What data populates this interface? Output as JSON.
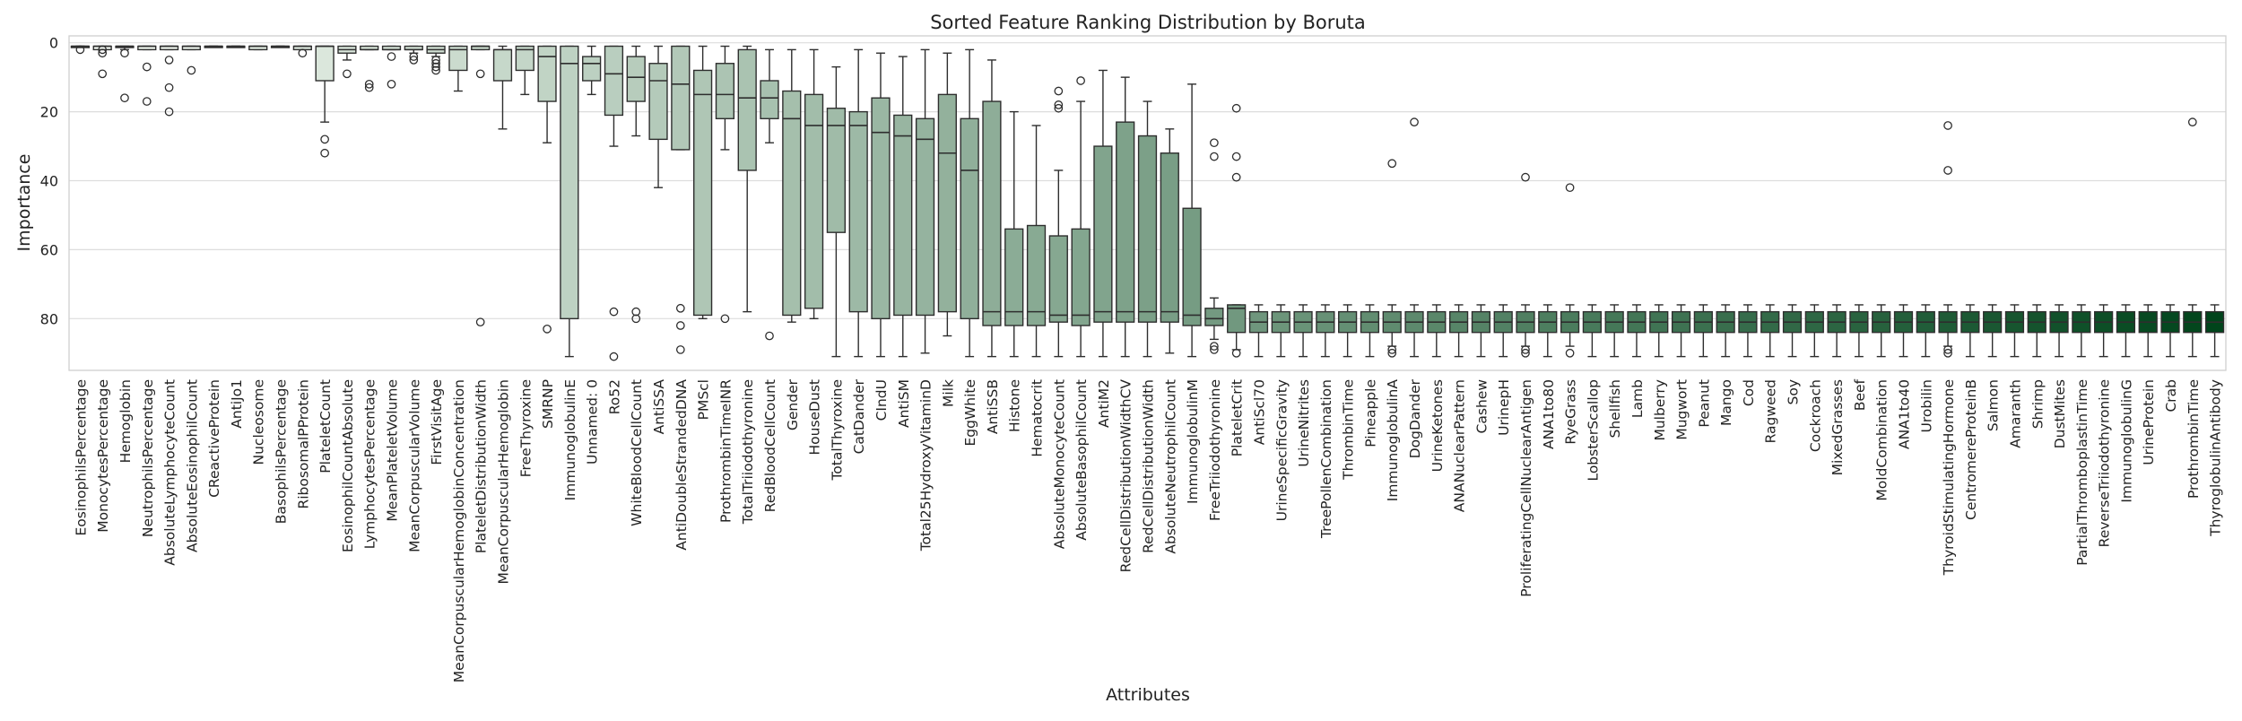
{
  "chart_data": {
    "type": "box",
    "title": "Sorted Feature Ranking Distribution by Boruta",
    "xlabel": "Attributes",
    "ylabel": "Importance",
    "ylim": [
      95,
      -2
    ],
    "y_inverted": true,
    "yticks": [
      0,
      20,
      40,
      60,
      80
    ],
    "grid": "horizontal",
    "color_scale": {
      "start": "#f7fcf5",
      "end": "#00441b"
    },
    "series": [
      {
        "name": "EosinophilsPercentage",
        "min": 1,
        "q1": 1,
        "median": 1,
        "q3": 1,
        "max": 1,
        "outliers": [
          2
        ]
      },
      {
        "name": "MonocytesPercentage",
        "min": 1,
        "q1": 1,
        "median": 1,
        "q3": 2,
        "max": 2,
        "outliers": [
          2,
          3,
          9
        ]
      },
      {
        "name": "Hemoglobin",
        "min": 1,
        "q1": 1,
        "median": 1,
        "q3": 1,
        "max": 2,
        "outliers": [
          3,
          16
        ]
      },
      {
        "name": "NeutrophilsPercentage",
        "min": 1,
        "q1": 1,
        "median": 1,
        "q3": 2,
        "max": 2,
        "outliers": [
          7,
          17
        ]
      },
      {
        "name": "AbsoluteLymphocyteCount",
        "min": 1,
        "q1": 1,
        "median": 1,
        "q3": 2,
        "max": 2,
        "outliers": [
          5,
          13,
          20
        ]
      },
      {
        "name": "AbsoluteEosinophilCount",
        "min": 1,
        "q1": 1,
        "median": 1,
        "q3": 2,
        "max": 2,
        "outliers": [
          8
        ]
      },
      {
        "name": "CReactiveProtein",
        "min": 1,
        "q1": 1,
        "median": 1,
        "q3": 1,
        "max": 1,
        "outliers": []
      },
      {
        "name": "AntiJo1",
        "min": 1,
        "q1": 1,
        "median": 1,
        "q3": 1,
        "max": 1,
        "outliers": []
      },
      {
        "name": "Nucleosome",
        "min": 1,
        "q1": 1,
        "median": 1,
        "q3": 2,
        "max": 2,
        "outliers": []
      },
      {
        "name": "BasophilsPercentage",
        "min": 1,
        "q1": 1,
        "median": 1,
        "q3": 1,
        "max": 1,
        "outliers": []
      },
      {
        "name": "RibosomalPProtein",
        "min": 1,
        "q1": 1,
        "median": 1,
        "q3": 2,
        "max": 2,
        "outliers": [
          3
        ]
      },
      {
        "name": "PlateletCount",
        "min": 1,
        "q1": 1,
        "median": 1,
        "q3": 11,
        "max": 23,
        "outliers": [
          28,
          32
        ]
      },
      {
        "name": "EosinophilCountAbsolute",
        "min": 1,
        "q1": 1,
        "median": 2,
        "q3": 3,
        "max": 5,
        "outliers": [
          9
        ]
      },
      {
        "name": "LymphocytesPercentage",
        "min": 1,
        "q1": 1,
        "median": 2,
        "q3": 2,
        "max": 2,
        "outliers": [
          12,
          13
        ]
      },
      {
        "name": "MeanPlateletVolume",
        "min": 1,
        "q1": 1,
        "median": 2,
        "q3": 2,
        "max": 2,
        "outliers": [
          4,
          12
        ]
      },
      {
        "name": "MeanCorpuscularVolume",
        "min": 1,
        "q1": 1,
        "median": 2,
        "q3": 2,
        "max": 3,
        "outliers": [
          4,
          5
        ]
      },
      {
        "name": "FirstVisitAge",
        "min": 1,
        "q1": 1,
        "median": 2,
        "q3": 3,
        "max": 4,
        "outliers": [
          5,
          6,
          7,
          8
        ]
      },
      {
        "name": "MeanCorpuscularHemoglobinConcentration",
        "min": 1,
        "q1": 1,
        "median": 2,
        "q3": 8,
        "max": 14,
        "outliers": []
      },
      {
        "name": "PlateletDistributionWidth",
        "min": 1,
        "q1": 1,
        "median": 1,
        "q3": 2,
        "max": 2,
        "outliers": [
          9,
          81
        ]
      },
      {
        "name": "MeanCorpuscularHemoglobin",
        "min": 1,
        "q1": 2,
        "median": 2,
        "q3": 11,
        "max": 25,
        "outliers": []
      },
      {
        "name": "FreeThyroxine",
        "min": 1,
        "q1": 1,
        "median": 2,
        "q3": 8,
        "max": 15,
        "outliers": []
      },
      {
        "name": "SMRNP",
        "min": 1,
        "q1": 1,
        "median": 4,
        "q3": 17,
        "max": 29,
        "outliers": [
          83
        ]
      },
      {
        "name": "ImmunoglobulinE",
        "min": 1,
        "q1": 1,
        "median": 6,
        "q3": 80,
        "max": 91,
        "outliers": []
      },
      {
        "name": "Unnamed: 0",
        "min": 1,
        "q1": 4,
        "median": 6,
        "q3": 11,
        "max": 15,
        "outliers": []
      },
      {
        "name": "Ro52",
        "min": 1,
        "q1": 1,
        "median": 9,
        "q3": 21,
        "max": 30,
        "outliers": [
          78,
          91
        ]
      },
      {
        "name": "WhiteBloodCellCount",
        "min": 1,
        "q1": 4,
        "median": 10,
        "q3": 17,
        "max": 27,
        "outliers": [
          78,
          80
        ]
      },
      {
        "name": "AntiSSA",
        "min": 1,
        "q1": 6,
        "median": 11,
        "q3": 28,
        "max": 42,
        "outliers": []
      },
      {
        "name": "AntiDoubleStrandedDNA",
        "min": 1,
        "q1": 1,
        "median": 12,
        "q3": 31,
        "max": 31,
        "outliers": [
          77,
          82,
          89
        ]
      },
      {
        "name": "PMScl",
        "min": 1,
        "q1": 8,
        "median": 15,
        "q3": 79,
        "max": 80,
        "outliers": []
      },
      {
        "name": "ProthrombinTimeINR",
        "min": 1,
        "q1": 6,
        "median": 15,
        "q3": 22,
        "max": 31,
        "outliers": [
          80
        ]
      },
      {
        "name": "TotalTriiodothyronine",
        "min": 1,
        "q1": 2,
        "median": 16,
        "q3": 37,
        "max": 78,
        "outliers": []
      },
      {
        "name": "RedBloodCellCount",
        "min": 2,
        "q1": 11,
        "median": 16,
        "q3": 22,
        "max": 29,
        "outliers": [
          85
        ]
      },
      {
        "name": "Gender",
        "min": 2,
        "q1": 14,
        "median": 22,
        "q3": 79,
        "max": 81,
        "outliers": []
      },
      {
        "name": "HouseDust",
        "min": 2,
        "q1": 15,
        "median": 24,
        "q3": 77,
        "max": 80,
        "outliers": []
      },
      {
        "name": "TotalThyroxine",
        "min": 7,
        "q1": 19,
        "median": 24,
        "q3": 55,
        "max": 91,
        "outliers": []
      },
      {
        "name": "CatDander",
        "min": 2,
        "q1": 20,
        "median": 24,
        "q3": 78,
        "max": 91,
        "outliers": []
      },
      {
        "name": "CIndU",
        "min": 3,
        "q1": 16,
        "median": 26,
        "q3": 80,
        "max": 91,
        "outliers": []
      },
      {
        "name": "AntiSM",
        "min": 4,
        "q1": 21,
        "median": 27,
        "q3": 79,
        "max": 91,
        "outliers": []
      },
      {
        "name": "Total25HydroxyVitaminD",
        "min": 2,
        "q1": 22,
        "median": 28,
        "q3": 79,
        "max": 90,
        "outliers": []
      },
      {
        "name": "Milk",
        "min": 3,
        "q1": 15,
        "median": 32,
        "q3": 78,
        "max": 85,
        "outliers": []
      },
      {
        "name": "EggWhite",
        "min": 2,
        "q1": 22,
        "median": 37,
        "q3": 80,
        "max": 91,
        "outliers": []
      },
      {
        "name": "AntiSSB",
        "min": 5,
        "q1": 17,
        "median": 78,
        "q3": 82,
        "max": 91,
        "outliers": []
      },
      {
        "name": "Histone",
        "min": 20,
        "q1": 54,
        "median": 78,
        "q3": 82,
        "max": 91,
        "outliers": []
      },
      {
        "name": "Hematocrit",
        "min": 24,
        "q1": 53,
        "median": 78,
        "q3": 82,
        "max": 91,
        "outliers": []
      },
      {
        "name": "AbsoluteMonocyteCount",
        "min": 37,
        "q1": 56,
        "median": 79,
        "q3": 81,
        "max": 91,
        "outliers": [
          14,
          18,
          19
        ]
      },
      {
        "name": "AbsoluteBasophilCount",
        "min": 17,
        "q1": 54,
        "median": 79,
        "q3": 82,
        "max": 91,
        "outliers": [
          11
        ]
      },
      {
        "name": "AntiM2",
        "min": 8,
        "q1": 30,
        "median": 78,
        "q3": 81,
        "max": 91,
        "outliers": []
      },
      {
        "name": "RedCellDistributionWidthCV",
        "min": 10,
        "q1": 23,
        "median": 78,
        "q3": 81,
        "max": 91,
        "outliers": []
      },
      {
        "name": "RedCellDistributionWidth",
        "min": 17,
        "q1": 27,
        "median": 78,
        "q3": 81,
        "max": 91,
        "outliers": []
      },
      {
        "name": "AbsoluteNeutrophilCount",
        "min": 25,
        "q1": 32,
        "median": 78,
        "q3": 81,
        "max": 90,
        "outliers": []
      },
      {
        "name": "ImmunoglobulinM",
        "min": 12,
        "q1": 48,
        "median": 79,
        "q3": 82,
        "max": 91,
        "outliers": []
      },
      {
        "name": "FreeTriiodothyronine",
        "min": 74,
        "q1": 77,
        "median": 80,
        "q3": 82,
        "max": 86,
        "outliers": [
          29,
          33,
          88,
          89
        ]
      },
      {
        "name": "PlateletCrit",
        "min": 76,
        "q1": 76,
        "median": 77,
        "q3": 84,
        "max": 89,
        "outliers": [
          19,
          33,
          39,
          90
        ]
      },
      {
        "name": "AntiScl70",
        "min": 76,
        "q1": 78,
        "median": 81,
        "q3": 84,
        "max": 91,
        "outliers": []
      },
      {
        "name": "UrineSpecificGravity",
        "min": 76,
        "q1": 78,
        "median": 81,
        "q3": 84,
        "max": 91,
        "outliers": []
      },
      {
        "name": "UrineNitrites",
        "min": 76,
        "q1": 78,
        "median": 81,
        "q3": 84,
        "max": 91,
        "outliers": []
      },
      {
        "name": "TreePollenCombination",
        "min": 76,
        "q1": 78,
        "median": 81,
        "q3": 84,
        "max": 91,
        "outliers": []
      },
      {
        "name": "ThrombinTime",
        "min": 76,
        "q1": 78,
        "median": 81,
        "q3": 84,
        "max": 91,
        "outliers": []
      },
      {
        "name": "Pineapple",
        "min": 76,
        "q1": 78,
        "median": 81,
        "q3": 84,
        "max": 91,
        "outliers": []
      },
      {
        "name": "ImmunoglobulinA",
        "min": 76,
        "q1": 78,
        "median": 81,
        "q3": 84,
        "max": 88,
        "outliers": [
          35,
          89,
          90
        ]
      },
      {
        "name": "DogDander",
        "min": 76,
        "q1": 78,
        "median": 81,
        "q3": 84,
        "max": 91,
        "outliers": [
          23
        ]
      },
      {
        "name": "UrineKetones",
        "min": 76,
        "q1": 78,
        "median": 81,
        "q3": 84,
        "max": 91,
        "outliers": []
      },
      {
        "name": "ANANuclearPattern",
        "min": 76,
        "q1": 78,
        "median": 81,
        "q3": 84,
        "max": 91,
        "outliers": []
      },
      {
        "name": "Cashew",
        "min": 76,
        "q1": 78,
        "median": 81,
        "q3": 84,
        "max": 91,
        "outliers": []
      },
      {
        "name": "UrinepH",
        "min": 76,
        "q1": 78,
        "median": 81,
        "q3": 84,
        "max": 91,
        "outliers": []
      },
      {
        "name": "ProliferatingCellNuclearAntigen",
        "min": 76,
        "q1": 78,
        "median": 81,
        "q3": 84,
        "max": 88,
        "outliers": [
          39,
          89,
          90
        ]
      },
      {
        "name": "ANA1to80",
        "min": 76,
        "q1": 78,
        "median": 81,
        "q3": 84,
        "max": 91,
        "outliers": []
      },
      {
        "name": "RyeGrass",
        "min": 76,
        "q1": 78,
        "median": 81,
        "q3": 84,
        "max": 88,
        "outliers": [
          42,
          90
        ]
      },
      {
        "name": "LobsterScallop",
        "min": 76,
        "q1": 78,
        "median": 81,
        "q3": 84,
        "max": 91,
        "outliers": []
      },
      {
        "name": "Shellfish",
        "min": 76,
        "q1": 78,
        "median": 81,
        "q3": 84,
        "max": 91,
        "outliers": []
      },
      {
        "name": "Lamb",
        "min": 76,
        "q1": 78,
        "median": 81,
        "q3": 84,
        "max": 91,
        "outliers": []
      },
      {
        "name": "Mulberry",
        "min": 76,
        "q1": 78,
        "median": 81,
        "q3": 84,
        "max": 91,
        "outliers": []
      },
      {
        "name": "Mugwort",
        "min": 76,
        "q1": 78,
        "median": 81,
        "q3": 84,
        "max": 91,
        "outliers": []
      },
      {
        "name": "Peanut",
        "min": 76,
        "q1": 78,
        "median": 81,
        "q3": 84,
        "max": 91,
        "outliers": []
      },
      {
        "name": "Mango",
        "min": 76,
        "q1": 78,
        "median": 81,
        "q3": 84,
        "max": 91,
        "outliers": []
      },
      {
        "name": "Cod",
        "min": 76,
        "q1": 78,
        "median": 81,
        "q3": 84,
        "max": 91,
        "outliers": []
      },
      {
        "name": "Ragweed",
        "min": 76,
        "q1": 78,
        "median": 81,
        "q3": 84,
        "max": 91,
        "outliers": []
      },
      {
        "name": "Soy",
        "min": 76,
        "q1": 78,
        "median": 81,
        "q3": 84,
        "max": 91,
        "outliers": []
      },
      {
        "name": "Cockroach",
        "min": 76,
        "q1": 78,
        "median": 81,
        "q3": 84,
        "max": 91,
        "outliers": []
      },
      {
        "name": "MixedGrasses",
        "min": 76,
        "q1": 78,
        "median": 81,
        "q3": 84,
        "max": 91,
        "outliers": []
      },
      {
        "name": "Beef",
        "min": 76,
        "q1": 78,
        "median": 81,
        "q3": 84,
        "max": 91,
        "outliers": []
      },
      {
        "name": "MoldCombination",
        "min": 76,
        "q1": 78,
        "median": 81,
        "q3": 84,
        "max": 91,
        "outliers": []
      },
      {
        "name": "ANA1to40",
        "min": 76,
        "q1": 78,
        "median": 81,
        "q3": 84,
        "max": 91,
        "outliers": []
      },
      {
        "name": "Urobilin",
        "min": 76,
        "q1": 78,
        "median": 81,
        "q3": 84,
        "max": 91,
        "outliers": []
      },
      {
        "name": "ThyroidStimulatingHormone",
        "min": 76,
        "q1": 78,
        "median": 81,
        "q3": 84,
        "max": 88,
        "outliers": [
          24,
          37,
          89,
          90
        ]
      },
      {
        "name": "CentromereProteinB",
        "min": 76,
        "q1": 78,
        "median": 81,
        "q3": 84,
        "max": 91,
        "outliers": []
      },
      {
        "name": "Salmon",
        "min": 76,
        "q1": 78,
        "median": 81,
        "q3": 84,
        "max": 91,
        "outliers": []
      },
      {
        "name": "Amaranth",
        "min": 76,
        "q1": 78,
        "median": 81,
        "q3": 84,
        "max": 91,
        "outliers": []
      },
      {
        "name": "Shrimp",
        "min": 76,
        "q1": 78,
        "median": 81,
        "q3": 84,
        "max": 91,
        "outliers": []
      },
      {
        "name": "DustMites",
        "min": 76,
        "q1": 78,
        "median": 81,
        "q3": 84,
        "max": 91,
        "outliers": []
      },
      {
        "name": "PartialThromboplastinTime",
        "min": 76,
        "q1": 78,
        "median": 81,
        "q3": 84,
        "max": 91,
        "outliers": []
      },
      {
        "name": "ReverseTriiodothyronine",
        "min": 76,
        "q1": 78,
        "median": 81,
        "q3": 84,
        "max": 91,
        "outliers": []
      },
      {
        "name": "ImmunoglobulinG",
        "min": 76,
        "q1": 78,
        "median": 81,
        "q3": 84,
        "max": 91,
        "outliers": []
      },
      {
        "name": "UrineProtein",
        "min": 76,
        "q1": 78,
        "median": 81,
        "q3": 84,
        "max": 91,
        "outliers": []
      },
      {
        "name": "Crab",
        "min": 76,
        "q1": 78,
        "median": 81,
        "q3": 84,
        "max": 91,
        "outliers": []
      },
      {
        "name": "ProthrombinTime",
        "min": 76,
        "q1": 78,
        "median": 81,
        "q3": 84,
        "max": 91,
        "outliers": [
          23
        ]
      },
      {
        "name": "ThyroglobulinAntibody",
        "min": 76,
        "q1": 78,
        "median": 81,
        "q3": 84,
        "max": 91,
        "outliers": []
      }
    ]
  }
}
